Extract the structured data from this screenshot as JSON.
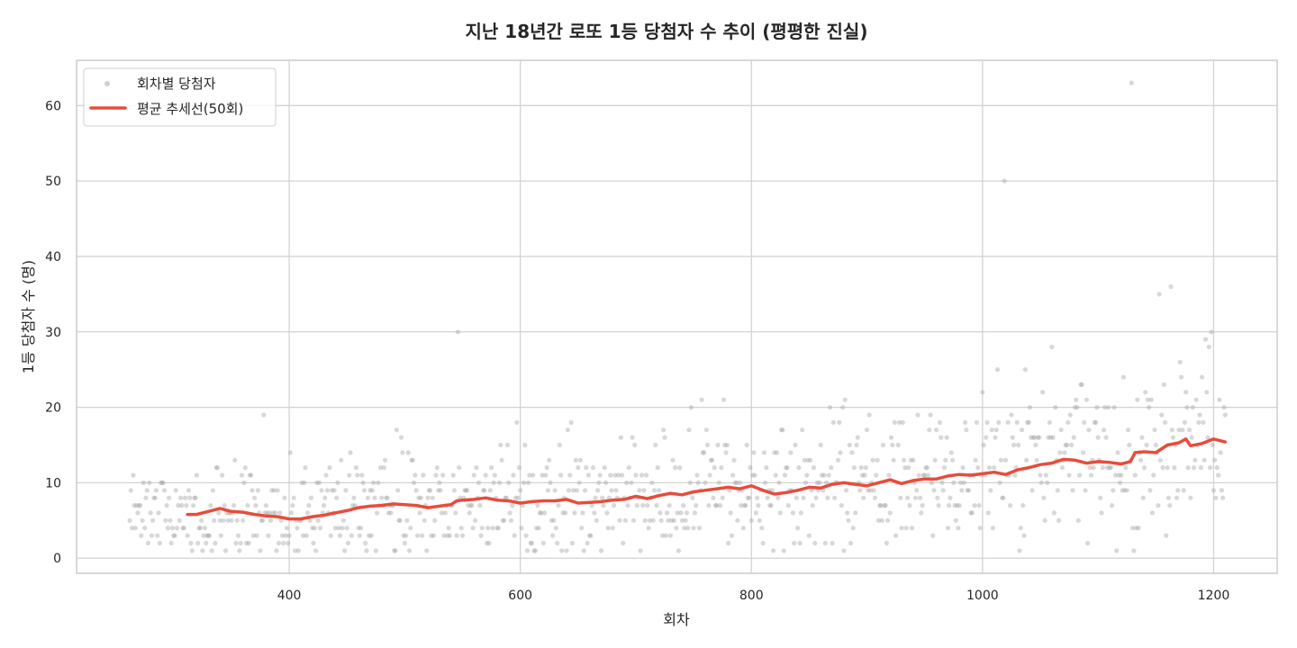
{
  "chart_data": {
    "type": "scatter",
    "title": "지난 18년간 로또 1등 당첨자 수 추이 (평평한 진실)",
    "xlabel": "회차",
    "ylabel": "1등 당첨자 수 (명)",
    "xlim": [
      216,
      1255
    ],
    "ylim": [
      -2,
      66
    ],
    "xticks": [
      400,
      600,
      800,
      1000,
      1200
    ],
    "yticks": [
      0,
      10,
      20,
      30,
      40,
      50,
      60
    ],
    "grid": true,
    "legend_position": "upper left",
    "legend": [
      {
        "label": "회차별 당첨자",
        "kind": "scatter",
        "color": "#b0b0b0"
      },
      {
        "label": "평균 추세선(50회)",
        "kind": "line",
        "color": "#e74c3c"
      }
    ],
    "series": [
      {
        "name": "회차별 당첨자",
        "kind": "scatter",
        "x_range": [
          262,
          1210
        ],
        "typical_range": [
          1,
          20
        ],
        "outliers": [
          {
            "x": 378,
            "y": 19
          },
          {
            "x": 546,
            "y": 30
          },
          {
            "x": 748,
            "y": 20
          },
          {
            "x": 757,
            "y": 21
          },
          {
            "x": 776,
            "y": 21
          },
          {
            "x": 1000,
            "y": 22
          },
          {
            "x": 1019,
            "y": 50
          },
          {
            "x": 1037,
            "y": 25
          },
          {
            "x": 1060,
            "y": 28
          },
          {
            "x": 1085,
            "y": 23
          },
          {
            "x": 1129,
            "y": 63
          },
          {
            "x": 1153,
            "y": 35
          },
          {
            "x": 1163,
            "y": 36
          },
          {
            "x": 1193,
            "y": 29
          },
          {
            "x": 1196,
            "y": 28
          },
          {
            "x": 1190,
            "y": 24
          },
          {
            "x": 1172,
            "y": 24
          }
        ]
      },
      {
        "name": "평균 추세선(50회)",
        "kind": "line",
        "x": [
          312,
          320,
          330,
          340,
          350,
          360,
          370,
          380,
          390,
          400,
          410,
          420,
          430,
          440,
          450,
          460,
          470,
          480,
          490,
          500,
          510,
          520,
          530,
          540,
          545,
          550,
          560,
          570,
          580,
          590,
          600,
          610,
          620,
          630,
          640,
          650,
          660,
          670,
          680,
          690,
          700,
          710,
          720,
          730,
          740,
          750,
          760,
          770,
          780,
          790,
          800,
          810,
          820,
          830,
          840,
          850,
          860,
          870,
          880,
          890,
          900,
          910,
          920,
          930,
          940,
          950,
          960,
          970,
          980,
          990,
          1000,
          1010,
          1020,
          1030,
          1040,
          1050,
          1060,
          1070,
          1080,
          1090,
          1100,
          1110,
          1120,
          1128,
          1132,
          1140,
          1150,
          1160,
          1170,
          1176,
          1180,
          1190,
          1200,
          1210
        ],
        "values": [
          5.8,
          5.8,
          6.2,
          6.6,
          6.2,
          6.1,
          5.8,
          5.6,
          5.5,
          5.2,
          5.2,
          5.5,
          5.7,
          6.0,
          6.3,
          6.7,
          6.9,
          7.0,
          7.2,
          7.1,
          7.0,
          6.7,
          6.9,
          7.1,
          7.6,
          7.7,
          7.8,
          8.0,
          7.7,
          7.6,
          7.3,
          7.5,
          7.6,
          7.6,
          7.8,
          7.3,
          7.4,
          7.5,
          7.7,
          7.8,
          8.2,
          7.9,
          8.3,
          8.6,
          8.4,
          8.8,
          9.0,
          9.2,
          9.4,
          9.2,
          9.6,
          9.0,
          8.5,
          8.7,
          9.0,
          9.4,
          9.3,
          9.8,
          10.0,
          9.8,
          9.6,
          10.0,
          10.4,
          9.9,
          10.3,
          10.5,
          10.5,
          10.9,
          11.1,
          11.0,
          11.2,
          11.4,
          11.1,
          11.7,
          12.0,
          12.4,
          12.6,
          13.1,
          13.0,
          12.6,
          12.8,
          12.7,
          12.5,
          12.8,
          14.0,
          14.1,
          14.0,
          15.0,
          15.3,
          15.8,
          14.9,
          15.2,
          15.8,
          15.4
        ]
      }
    ]
  }
}
